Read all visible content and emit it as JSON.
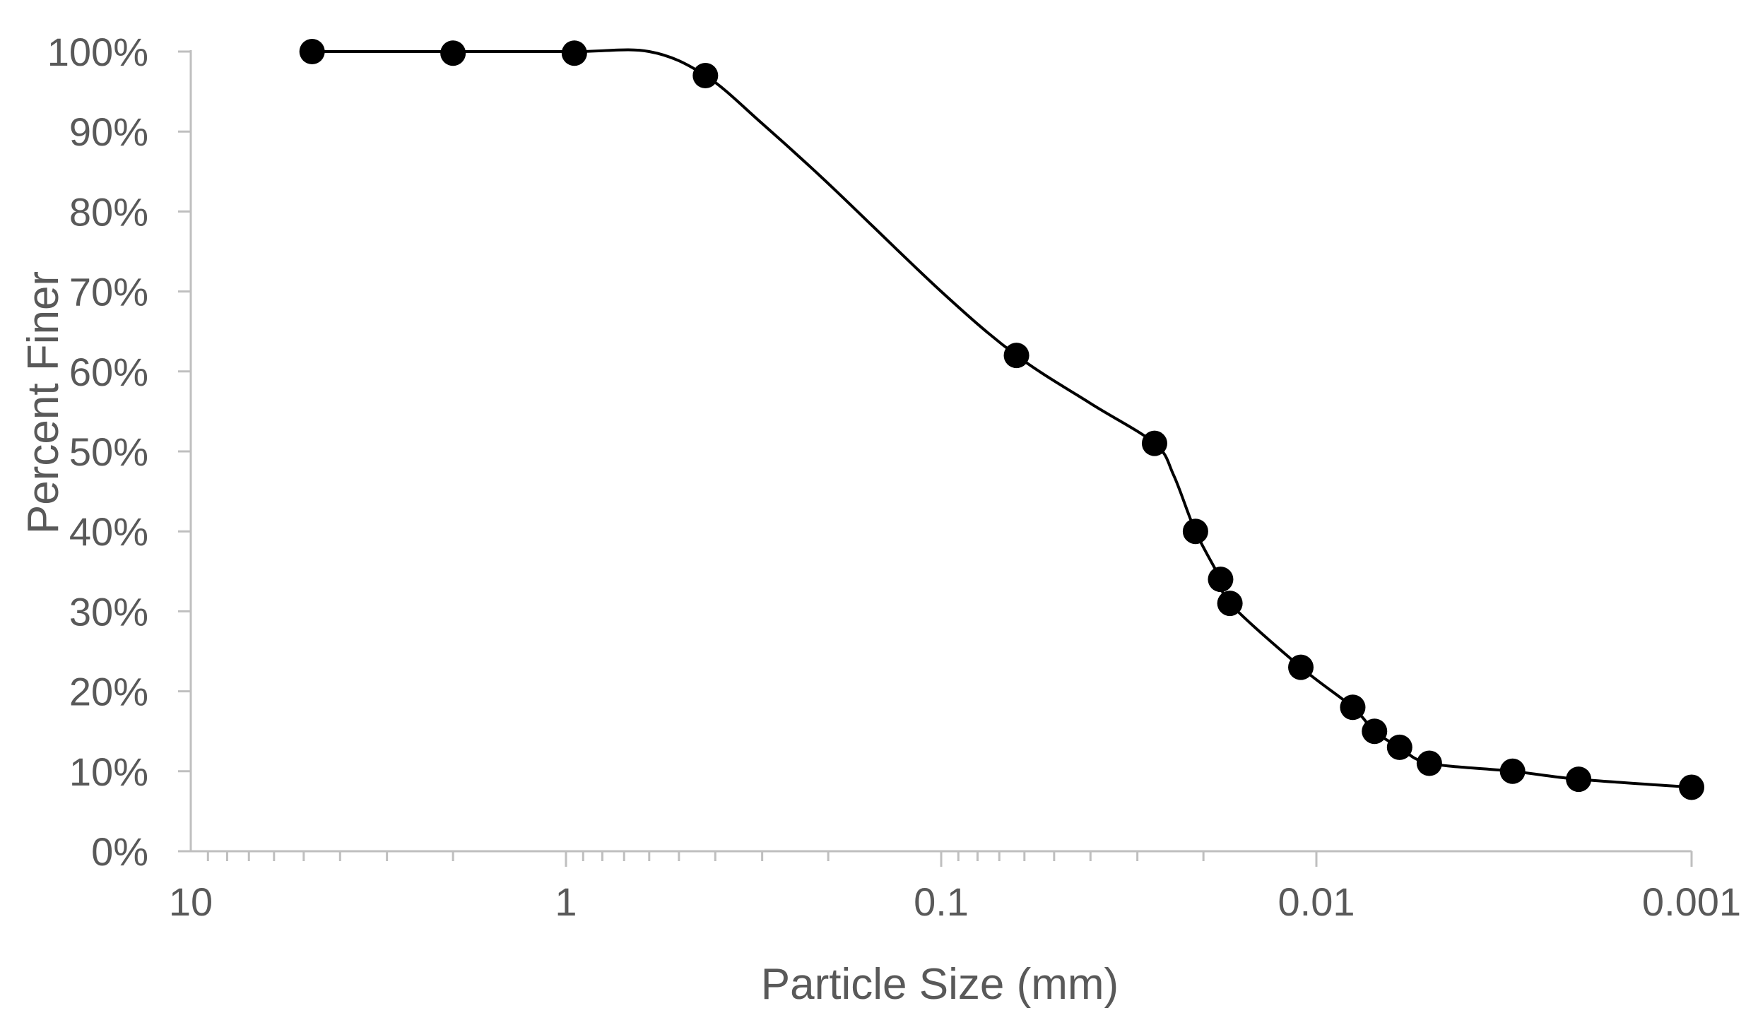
{
  "chart_data": {
    "type": "scatter",
    "xlabel": "Particle Size (mm)",
    "ylabel": "Percent Finer",
    "x_scale": "log",
    "x_reversed": true,
    "xlim": [
      10,
      0.001
    ],
    "ylim": [
      0,
      100
    ],
    "x_tick_labels": [
      "10",
      "1",
      "0.1",
      "0.01",
      "0.001"
    ],
    "y_tick_labels": [
      "0%",
      "10%",
      "20%",
      "30%",
      "40%",
      "50%",
      "60%",
      "70%",
      "80%",
      "90%",
      "100%"
    ],
    "grid": false,
    "legend": "none",
    "series": [
      {
        "style": "smooth line with markers",
        "color": "#000000",
        "points": [
          {
            "x": 4.75,
            "y": 100
          },
          {
            "x": 2.0,
            "y": 99.8
          },
          {
            "x": 0.95,
            "y": 99.8
          },
          {
            "x": 0.425,
            "y": 97
          },
          {
            "x": 0.063,
            "y": 62
          },
          {
            "x": 0.027,
            "y": 51
          },
          {
            "x": 0.021,
            "y": 40
          },
          {
            "x": 0.018,
            "y": 34
          },
          {
            "x": 0.017,
            "y": 31
          },
          {
            "x": 0.011,
            "y": 23
          },
          {
            "x": 0.008,
            "y": 18
          },
          {
            "x": 0.007,
            "y": 15
          },
          {
            "x": 0.006,
            "y": 13
          },
          {
            "x": 0.005,
            "y": 11
          },
          {
            "x": 0.003,
            "y": 10
          },
          {
            "x": 0.002,
            "y": 9
          },
          {
            "x": 0.001,
            "y": 8
          }
        ],
        "curve": [
          {
            "x": 4.75,
            "y": 100
          },
          {
            "x": 2.0,
            "y": 100
          },
          {
            "x": 0.95,
            "y": 100
          },
          {
            "x": 0.6,
            "y": 100
          },
          {
            "x": 0.425,
            "y": 97
          },
          {
            "x": 0.3,
            "y": 91
          },
          {
            "x": 0.2,
            "y": 83.5
          },
          {
            "x": 0.1,
            "y": 70
          },
          {
            "x": 0.063,
            "y": 62
          },
          {
            "x": 0.04,
            "y": 56
          },
          {
            "x": 0.027,
            "y": 51
          },
          {
            "x": 0.024,
            "y": 47
          },
          {
            "x": 0.021,
            "y": 40
          },
          {
            "x": 0.018,
            "y": 34
          },
          {
            "x": 0.017,
            "y": 31
          },
          {
            "x": 0.011,
            "y": 23
          },
          {
            "x": 0.008,
            "y": 18
          },
          {
            "x": 0.007,
            "y": 15
          },
          {
            "x": 0.006,
            "y": 13
          },
          {
            "x": 0.005,
            "y": 11
          },
          {
            "x": 0.003,
            "y": 10
          },
          {
            "x": 0.002,
            "y": 9
          },
          {
            "x": 0.001,
            "y": 8
          }
        ]
      }
    ]
  }
}
